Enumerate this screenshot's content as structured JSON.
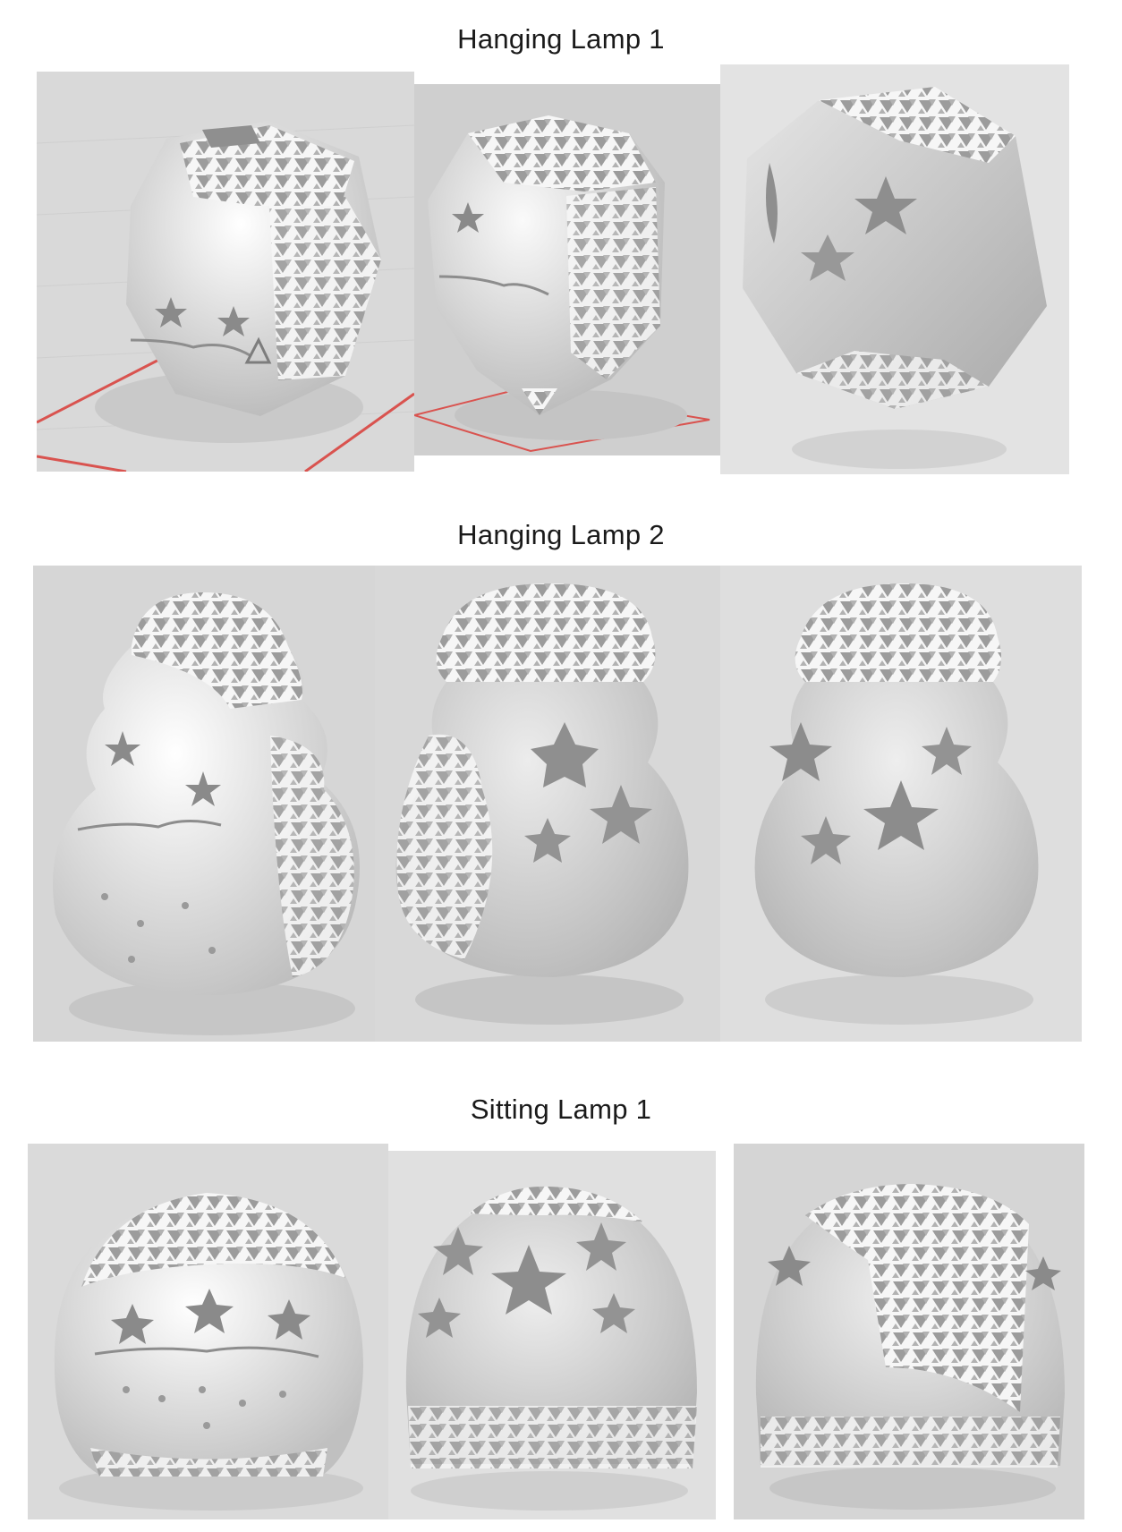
{
  "sections": [
    {
      "title": "Hanging Lamp 1",
      "renders": [
        {
          "shape": "polyhedron",
          "view": "front-left",
          "bed_grid": "red",
          "background": "#d9d9d9"
        },
        {
          "shape": "polyhedron",
          "view": "front",
          "bed_grid": "red",
          "background": "#cfcfcf"
        },
        {
          "shape": "polyhedron",
          "view": "tilted",
          "bed_grid": "none",
          "background": "#e3e3e3"
        }
      ]
    },
    {
      "title": "Hanging Lamp 2",
      "renders": [
        {
          "shape": "gourd",
          "view": "front-left",
          "background": "#d6d6d6"
        },
        {
          "shape": "gourd",
          "view": "front",
          "background": "#d8d8d8"
        },
        {
          "shape": "gourd",
          "view": "right",
          "background": "#dedede"
        }
      ]
    },
    {
      "title": "Sitting Lamp 1",
      "renders": [
        {
          "shape": "dome",
          "view": "front-reindeer",
          "background": "#dadada"
        },
        {
          "shape": "dome",
          "view": "front-snowflake",
          "background": "#e0e0e0"
        },
        {
          "shape": "dome",
          "view": "right-lattice",
          "background": "#d5d5d5"
        }
      ]
    }
  ]
}
